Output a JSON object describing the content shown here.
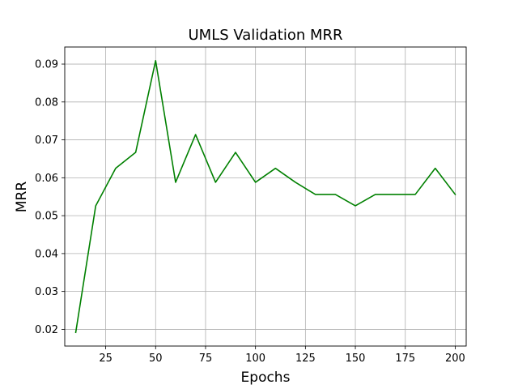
{
  "chart_data": {
    "type": "line",
    "title": "UMLS Validation MRR",
    "xlabel": "Epochs",
    "ylabel": "MRR",
    "x": [
      10,
      20,
      30,
      40,
      50,
      60,
      70,
      80,
      90,
      100,
      110,
      120,
      130,
      140,
      150,
      160,
      170,
      180,
      190,
      200
    ],
    "series": [
      {
        "color": "#008000",
        "values": [
          0.0192,
          0.0526,
          0.0625,
          0.0667,
          0.0909,
          0.0588,
          0.0714,
          0.0588,
          0.0667,
          0.0588,
          0.0625,
          0.0588,
          0.0556,
          0.0556,
          0.0526,
          0.0556,
          0.0556,
          0.0556,
          0.0625,
          0.0556
        ]
      }
    ],
    "xlim": [
      4.5,
      205.5
    ],
    "ylim": [
      0.0156,
      0.0945
    ],
    "xticks": [
      25,
      50,
      75,
      100,
      125,
      150,
      175,
      200
    ],
    "xtick_labels": [
      "25",
      "50",
      "75",
      "100",
      "125",
      "150",
      "175",
      "200"
    ],
    "yticks": [
      0.02,
      0.03,
      0.04,
      0.05,
      0.06,
      0.07,
      0.08,
      0.09
    ],
    "ytick_labels": [
      "0.02",
      "0.03",
      "0.04",
      "0.05",
      "0.06",
      "0.07",
      "0.08",
      "0.09"
    ],
    "grid": true,
    "grid_color": "#b0b0b0"
  }
}
